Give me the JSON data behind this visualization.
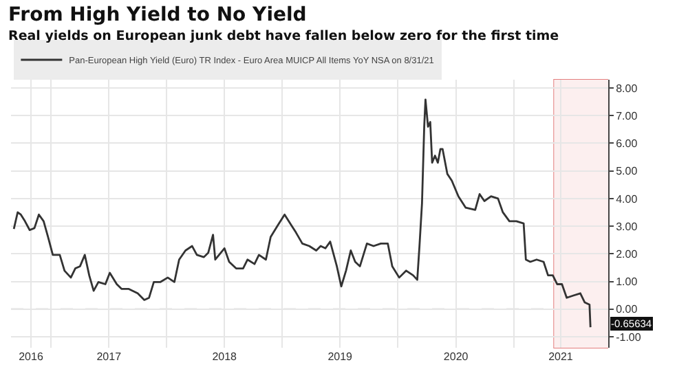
{
  "chart_data": {
    "type": "line",
    "title": "From High Yield to No Yield",
    "subtitle": "Real yields on European junk debt have fallen below zero for the first time",
    "x": [
      "2016-09-05",
      "2016-09-17",
      "2016-09-27",
      "2016-10-10",
      "2016-10-25",
      "2016-11-09",
      "2016-11-23",
      "2016-12-08",
      "2016-12-22",
      "2017-01-06",
      "2017-01-28",
      "2017-02-12",
      "2017-03-04",
      "2017-03-18",
      "2017-04-02",
      "2017-04-17",
      "2017-05-01",
      "2017-05-15",
      "2017-05-30",
      "2017-06-21",
      "2017-07-05",
      "2017-07-27",
      "2017-08-11",
      "2017-09-02",
      "2017-10-01",
      "2017-10-22",
      "2017-11-06",
      "2017-11-21",
      "2017-12-12",
      "2018-01-04",
      "2018-01-25",
      "2018-02-09",
      "2018-03-01",
      "2018-03-22",
      "2018-04-06",
      "2018-04-28",
      "2018-05-12",
      "2018-05-27",
      "2018-06-03",
      "2018-07-02",
      "2018-07-17",
      "2018-08-08",
      "2018-08-30",
      "2018-09-13",
      "2018-10-05",
      "2018-10-19",
      "2018-11-10",
      "2018-11-25",
      "2018-12-17",
      "2019-01-08",
      "2019-01-30",
      "2019-02-13",
      "2019-03-05",
      "2019-03-27",
      "2019-04-18",
      "2019-05-02",
      "2019-05-17",
      "2019-06-01",
      "2019-06-22",
      "2019-07-06",
      "2019-07-21",
      "2019-08-05",
      "2019-08-19",
      "2019-09-03",
      "2019-09-25",
      "2019-10-16",
      "2019-11-08",
      "2019-11-30",
      "2019-12-14",
      "2020-01-05",
      "2020-01-27",
      "2020-02-18",
      "2020-03-02",
      "2020-03-09",
      "2020-03-17",
      "2020-03-24",
      "2020-03-28",
      "2020-04-05",
      "2020-04-12",
      "2020-04-18",
      "2020-04-27",
      "2020-05-06",
      "2020-05-14",
      "2020-05-21",
      "2020-06-05",
      "2020-06-19",
      "2020-07-10",
      "2020-08-02",
      "2020-09-01",
      "2020-09-15",
      "2020-09-30",
      "2020-10-21",
      "2020-11-12",
      "2020-11-27",
      "2020-12-18",
      "2021-01-09",
      "2021-02-01",
      "2021-02-08",
      "2021-02-22",
      "2021-03-14",
      "2021-04-05",
      "2021-04-19",
      "2021-05-04",
      "2021-05-18",
      "2021-06-02",
      "2021-06-17",
      "2021-07-08",
      "2021-07-30",
      "2021-08-13",
      "2021-08-28",
      "2021-08-31"
    ],
    "series": [
      {
        "name": "Pan-European High Yield (Euro) TR Index - Euro Area MUICP All Items YoY NSA on 8/31/21",
        "color": "#333333",
        "values": [
          2.9,
          3.5,
          3.42,
          3.18,
          2.86,
          2.93,
          3.42,
          3.18,
          2.61,
          1.96,
          1.96,
          1.39,
          1.14,
          1.47,
          1.55,
          1.96,
          1.22,
          0.66,
          0.98,
          0.9,
          1.31,
          0.9,
          0.73,
          0.73,
          0.57,
          0.33,
          0.41,
          0.98,
          0.98,
          1.14,
          0.98,
          1.79,
          2.12,
          2.28,
          1.96,
          1.88,
          2.04,
          2.69,
          1.79,
          2.2,
          1.71,
          1.47,
          1.47,
          1.79,
          1.63,
          1.96,
          1.79,
          2.61,
          3.02,
          3.42,
          3.02,
          2.77,
          2.37,
          2.28,
          2.12,
          2.28,
          2.2,
          2.44,
          1.55,
          0.82,
          1.39,
          2.12,
          1.71,
          1.55,
          2.37,
          2.28,
          2.37,
          2.37,
          1.55,
          1.14,
          1.39,
          1.22,
          1.06,
          2.28,
          3.83,
          6.6,
          7.58,
          6.6,
          6.77,
          5.3,
          5.55,
          5.3,
          5.79,
          5.79,
          4.89,
          4.65,
          4.08,
          3.67,
          3.59,
          4.16,
          3.91,
          4.08,
          4.0,
          3.51,
          3.18,
          3.18,
          3.1,
          1.79,
          1.71,
          1.79,
          1.71,
          1.22,
          1.22,
          0.9,
          0.9,
          0.41,
          0.49,
          0.57,
          0.24,
          0.16,
          -0.65634
        ]
      }
    ],
    "xlim": [
      "2016-08-27",
      "2021-10-26"
    ],
    "xticks": [
      {
        "value": "2016-10-29",
        "label": "2016"
      },
      {
        "value": "2017-01-01",
        "label": null
      },
      {
        "value": "2017-07-02",
        "label": "2017"
      },
      {
        "value": "2018-01-01",
        "label": null
      },
      {
        "value": "2018-07-02",
        "label": "2018"
      },
      {
        "value": "2019-01-01",
        "label": null
      },
      {
        "value": "2019-07-02",
        "label": "2019"
      },
      {
        "value": "2020-01-01",
        "label": null
      },
      {
        "value": "2020-07-02",
        "label": "2020"
      },
      {
        "value": "2021-01-01",
        "label": null
      },
      {
        "value": "2021-05-29",
        "label": "2021"
      }
    ],
    "ylim": [
      -1.4,
      8.3
    ],
    "yticks": [
      {
        "value": 8,
        "label": "8.00"
      },
      {
        "value": 7,
        "label": "7.00"
      },
      {
        "value": 6,
        "label": "6.00"
      },
      {
        "value": 5,
        "label": "5.00"
      },
      {
        "value": 4,
        "label": "4.00"
      },
      {
        "value": 3,
        "label": "3.00"
      },
      {
        "value": 2,
        "label": "2.00"
      },
      {
        "value": 1,
        "label": "1.00"
      },
      {
        "value": 0,
        "label": "0.00"
      },
      {
        "value": -1,
        "label": "-1.00"
      }
    ],
    "ref_lines": [
      {
        "axis": "y",
        "value": 0,
        "color": "#bbbbbb",
        "line_style": "dashed"
      }
    ],
    "bands": [
      {
        "axis": "x",
        "from": "2021-05-08",
        "to": "2021-10-26",
        "color": "#e07070"
      }
    ],
    "annotations": [
      {
        "text": "-0.65634",
        "x": "2021-08-31",
        "y": -0.65634
      }
    ],
    "grid": true,
    "legend": "top left",
    "marker": "none",
    "line_style": "solid"
  }
}
